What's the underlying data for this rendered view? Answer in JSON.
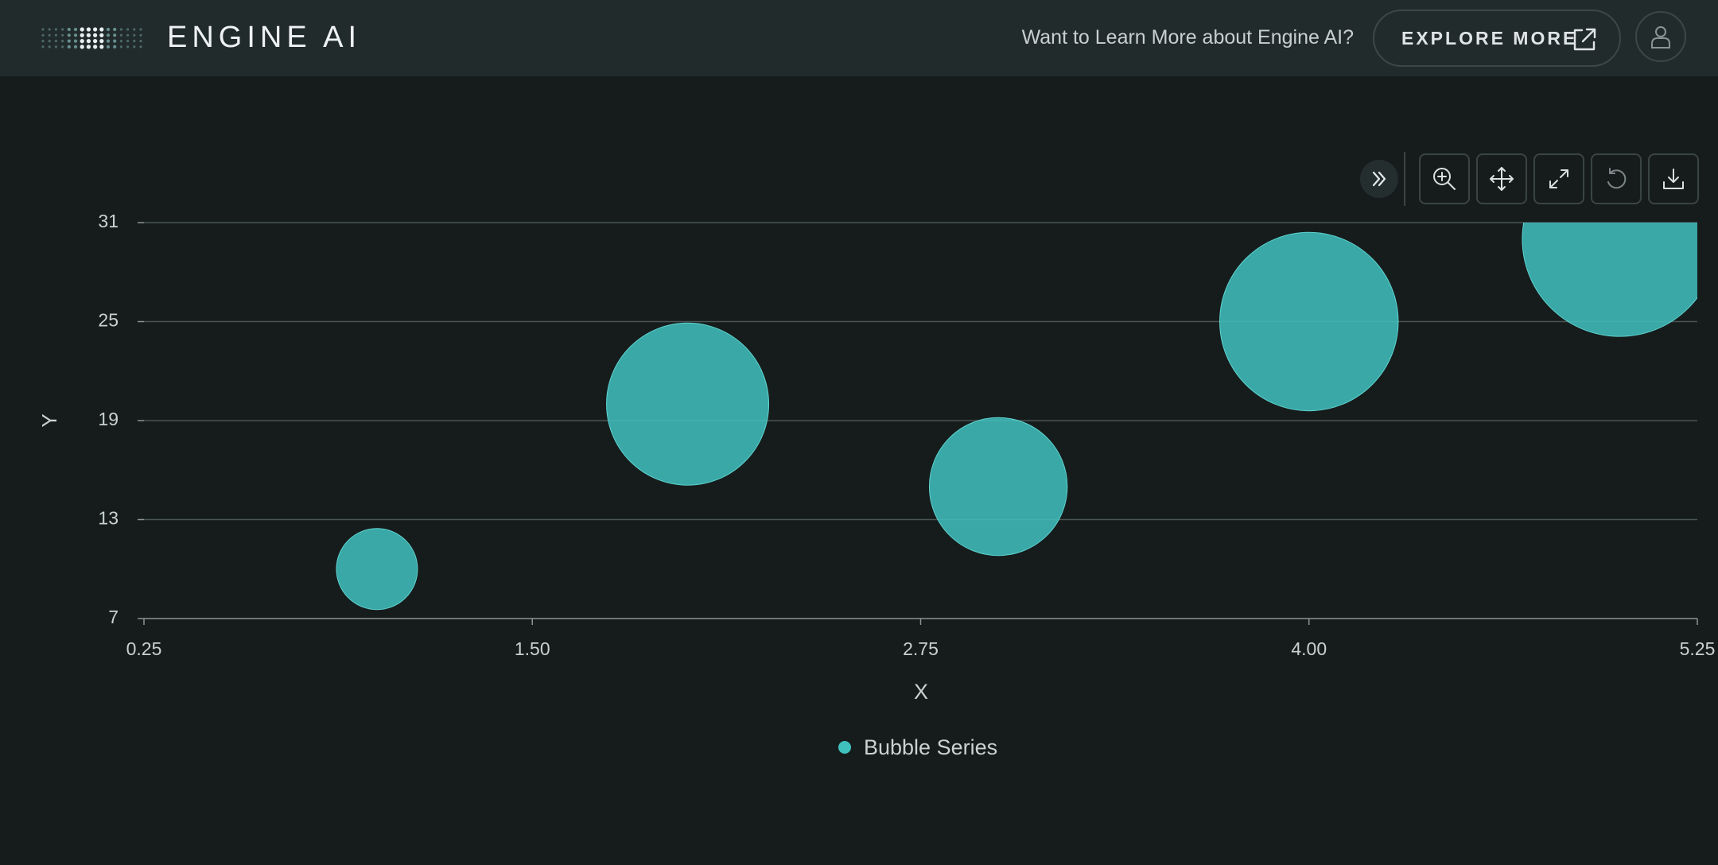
{
  "header": {
    "brand": "ENGINE AI",
    "promo_text": "Want to Learn More about Engine AI?",
    "explore_label": "EXPLORE MORE"
  },
  "toolbar": {
    "icons": [
      "collapse-icon",
      "zoom-icon",
      "pan-icon",
      "fullscreen-icon",
      "reset-icon",
      "download-icon"
    ]
  },
  "colors": {
    "background": "#161c1c",
    "header": "#222b2c",
    "bubble": "#3fc1be",
    "grid": "#4a5454",
    "text": "#c9d1d1"
  },
  "chart_data": {
    "type": "scatter",
    "subtype": "bubble",
    "xlabel": "X",
    "ylabel": "Y",
    "xlim": [
      0.25,
      5.25
    ],
    "ylim": [
      7,
      31
    ],
    "x_ticks": [
      "0.25",
      "1.50",
      "2.75",
      "4.00",
      "5.25"
    ],
    "x_tick_values": [
      0.25,
      1.5,
      2.75,
      4.0,
      5.25
    ],
    "y_ticks": [
      "31",
      "25",
      "19",
      "13",
      "7"
    ],
    "y_tick_values": [
      31,
      25,
      19,
      13,
      7
    ],
    "grid": true,
    "legend_position": "bottom-center",
    "series": [
      {
        "name": "Bubble Series",
        "points": [
          {
            "x": 1.0,
            "y": 10,
            "size": 5
          },
          {
            "x": 2.0,
            "y": 20,
            "size": 10
          },
          {
            "x": 3.0,
            "y": 15,
            "size": 8.5
          },
          {
            "x": 4.0,
            "y": 25,
            "size": 11
          },
          {
            "x": 5.0,
            "y": 30,
            "size": 12
          }
        ]
      }
    ]
  }
}
